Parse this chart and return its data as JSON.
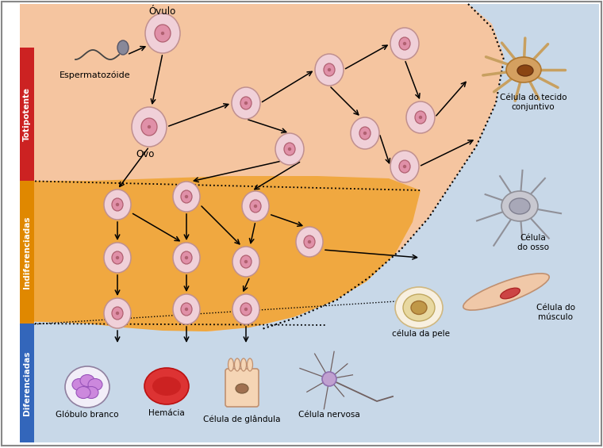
{
  "bg_color": "#ffffff",
  "salmon_bg": "#f5c5a0",
  "orange_bg": "#f0a840",
  "blue_bg": "#c8d8e8",
  "label_bg_toti": "#cc2222",
  "label_bg_indi": "#e08800",
  "label_bg_dife": "#3366bb",
  "label_totipotente": "Totipotente",
  "label_indiferenciadas": "Indiferenciadas",
  "label_diferenciadas": "Diferenciadas",
  "ovulo_label": "Óvulo",
  "esperma_label": "Espermatozóide",
  "ovo_label": "Ovo",
  "cell_fill": "#f0d0d8",
  "cell_edge": "#c09090",
  "nucleus_fill": "#e090a8",
  "nucleus_edge": "#b06070",
  "labels_right": [
    "Célula do tecido\nconjuntivo",
    "Célula\ndo osso",
    "Célula do\nmúsculo",
    "célula da pele"
  ],
  "labels_bottom": [
    "Glóbulo branco",
    "Hemácia",
    "Célula de glândula",
    "Célula nervosa"
  ]
}
